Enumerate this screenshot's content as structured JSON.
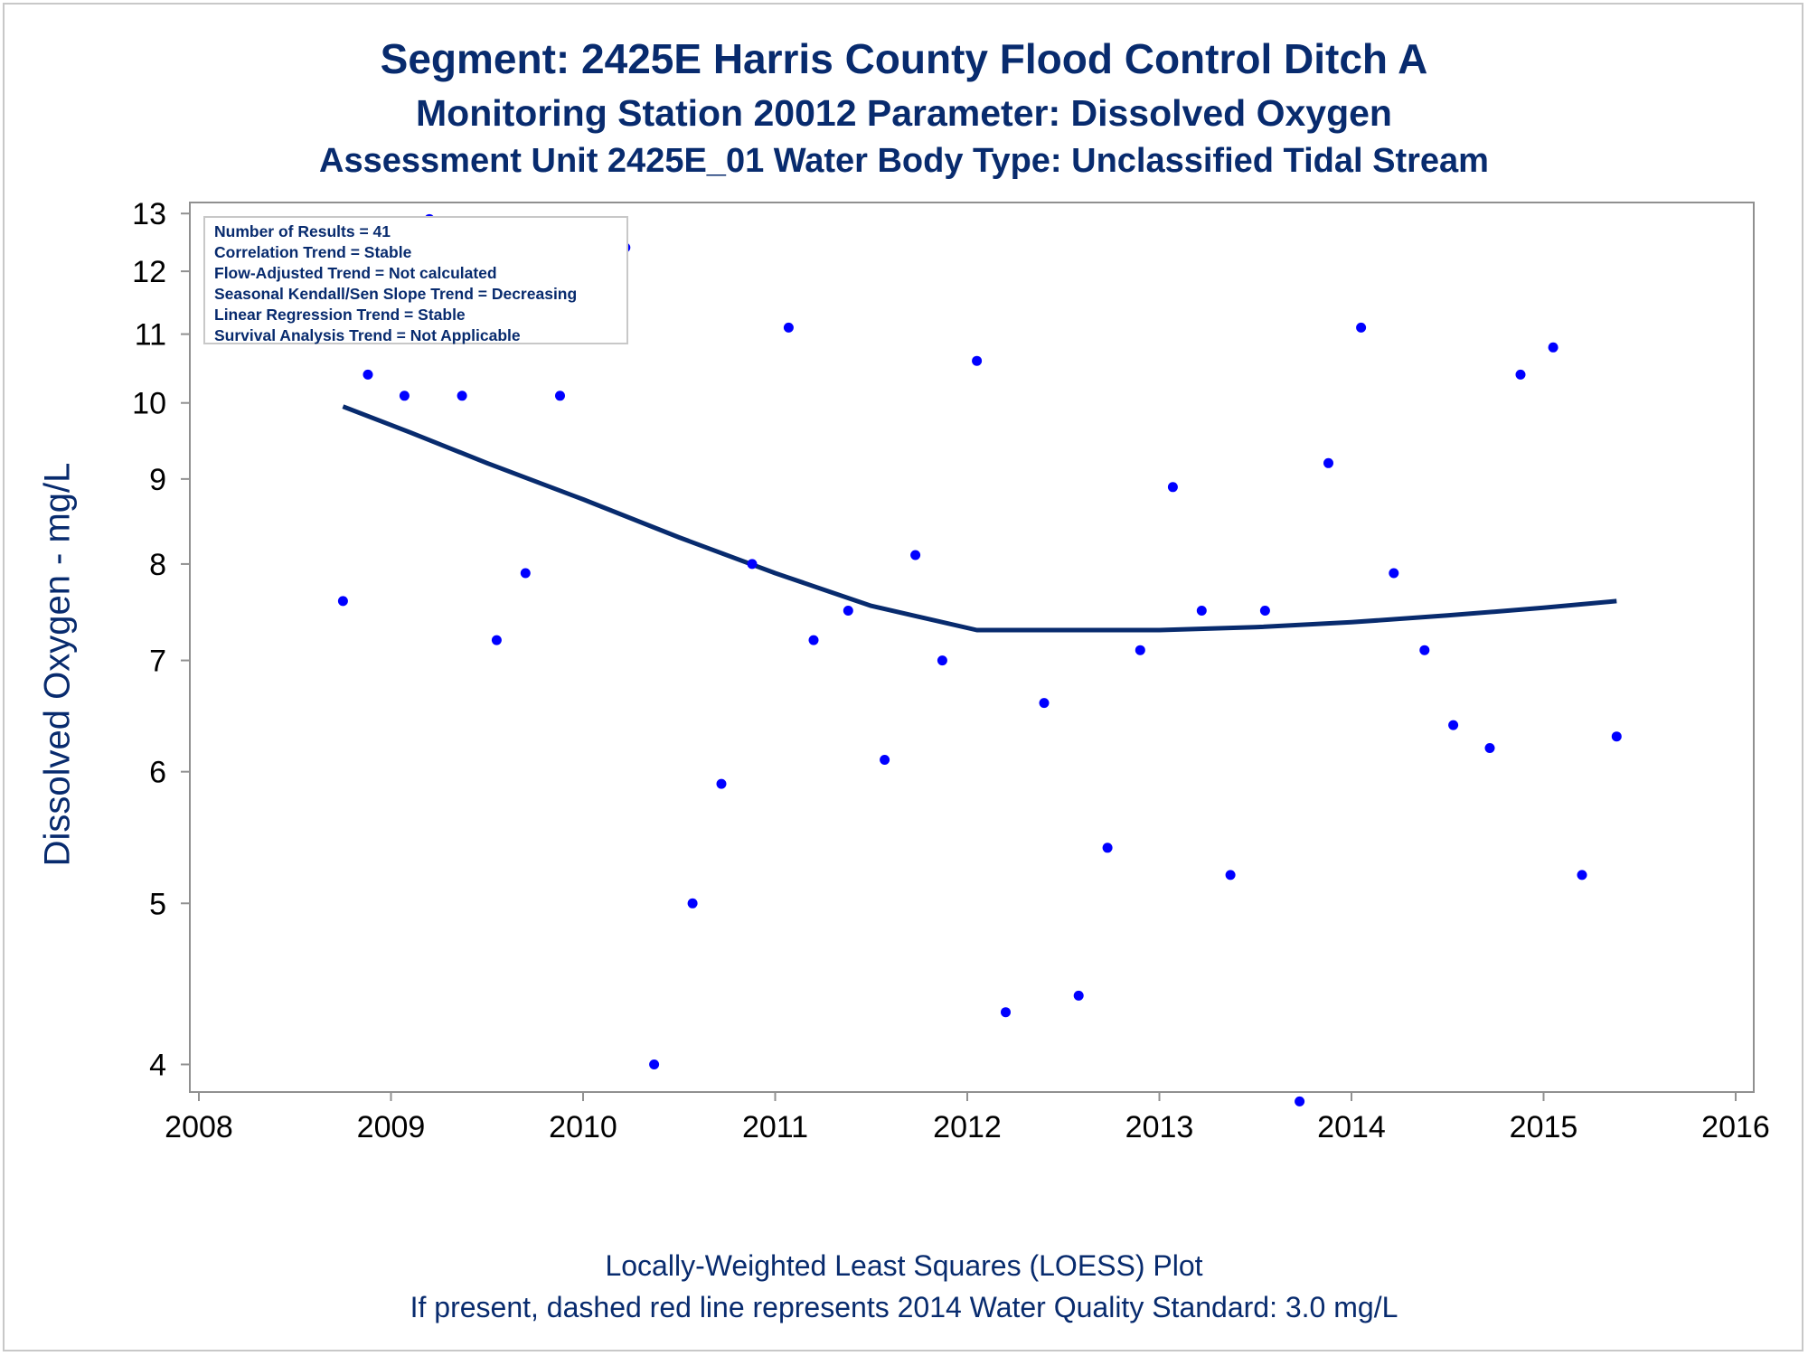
{
  "titles": {
    "line1": "Segment: 2425E  Harris County Flood Control Ditch A",
    "line2": "Monitoring Station 20012 Parameter: Dissolved Oxygen",
    "line3": "Assessment Unit 2425E_01   Water Body Type: Unclassified Tidal Stream"
  },
  "footnotes": {
    "line1": "Locally-Weighted Least Squares (LOESS) Plot",
    "line2": "If present, dashed red line represents 2014 Water Quality Standard: 3.0 mg/L"
  },
  "stats_box": {
    "lines": [
      "Number of Results = 41",
      "Correlation Trend = Stable",
      "Flow-Adjusted Trend = Not calculated",
      "Seasonal Kendall/Sen Slope Trend = Decreasing",
      "Linear Regression Trend = Stable",
      "Survival Analysis Trend = Not Applicable"
    ]
  },
  "colors": {
    "title_text": "#082b6e",
    "points": "#0000ff",
    "loess_line": "#082b6e",
    "axis": "#909090"
  },
  "chart_data": {
    "type": "scatter",
    "title": "Segment: 2425E  Harris County Flood Control Ditch A",
    "xlabel": "",
    "ylabel": "Dissolved Oxygen - mg/L",
    "y_scale": "log",
    "xlim": [
      2008,
      2016
    ],
    "ylim": [
      3.85,
      13.2
    ],
    "x_ticks": [
      2008,
      2009,
      2010,
      2011,
      2012,
      2013,
      2014,
      2015,
      2016
    ],
    "y_ticks": [
      4,
      5,
      6,
      7,
      8,
      9,
      10,
      11,
      12,
      13
    ],
    "legend": "none",
    "grid": false,
    "series": [
      {
        "type": "scatter",
        "points": [
          {
            "x": 2008.75,
            "y": 7.6
          },
          {
            "x": 2008.88,
            "y": 10.4
          },
          {
            "x": 2009.07,
            "y": 10.1
          },
          {
            "x": 2009.2,
            "y": 12.9
          },
          {
            "x": 2009.37,
            "y": 10.1
          },
          {
            "x": 2009.55,
            "y": 7.2
          },
          {
            "x": 2009.7,
            "y": 7.9
          },
          {
            "x": 2009.88,
            "y": 10.1
          },
          {
            "x": 2010.05,
            "y": 12.5
          },
          {
            "x": 2010.22,
            "y": 12.4
          },
          {
            "x": 2010.37,
            "y": 4.0
          },
          {
            "x": 2010.57,
            "y": 5.0
          },
          {
            "x": 2010.72,
            "y": 5.9
          },
          {
            "x": 2010.88,
            "y": 8.0
          },
          {
            "x": 2011.07,
            "y": 11.1
          },
          {
            "x": 2011.2,
            "y": 7.2
          },
          {
            "x": 2011.38,
            "y": 7.5
          },
          {
            "x": 2011.57,
            "y": 6.1
          },
          {
            "x": 2011.73,
            "y": 8.1
          },
          {
            "x": 2011.87,
            "y": 7.0
          },
          {
            "x": 2012.05,
            "y": 10.6
          },
          {
            "x": 2012.2,
            "y": 4.3
          },
          {
            "x": 2012.4,
            "y": 6.6
          },
          {
            "x": 2012.58,
            "y": 4.4
          },
          {
            "x": 2012.73,
            "y": 5.4
          },
          {
            "x": 2012.9,
            "y": 7.1
          },
          {
            "x": 2013.07,
            "y": 8.9
          },
          {
            "x": 2013.22,
            "y": 7.5
          },
          {
            "x": 2013.37,
            "y": 5.2
          },
          {
            "x": 2013.55,
            "y": 7.5
          },
          {
            "x": 2013.73,
            "y": 3.8
          },
          {
            "x": 2013.88,
            "y": 9.2
          },
          {
            "x": 2014.05,
            "y": 11.1
          },
          {
            "x": 2014.22,
            "y": 7.9
          },
          {
            "x": 2014.38,
            "y": 7.1
          },
          {
            "x": 2014.53,
            "y": 6.4
          },
          {
            "x": 2014.72,
            "y": 6.2
          },
          {
            "x": 2014.88,
            "y": 10.4
          },
          {
            "x": 2015.05,
            "y": 10.8
          },
          {
            "x": 2015.2,
            "y": 5.2
          },
          {
            "x": 2015.38,
            "y": 6.3
          }
        ]
      },
      {
        "type": "line",
        "points": [
          {
            "x": 2008.75,
            "y": 9.95
          },
          {
            "x": 2009.1,
            "y": 9.6
          },
          {
            "x": 2009.5,
            "y": 9.2
          },
          {
            "x": 2010.0,
            "y": 8.75
          },
          {
            "x": 2010.5,
            "y": 8.3
          },
          {
            "x": 2011.0,
            "y": 7.9
          },
          {
            "x": 2011.5,
            "y": 7.55
          },
          {
            "x": 2012.05,
            "y": 7.3
          },
          {
            "x": 2012.3,
            "y": 7.3
          },
          {
            "x": 2012.6,
            "y": 7.3
          },
          {
            "x": 2013.0,
            "y": 7.3
          },
          {
            "x": 2013.5,
            "y": 7.33
          },
          {
            "x": 2014.0,
            "y": 7.38
          },
          {
            "x": 2014.5,
            "y": 7.45
          },
          {
            "x": 2015.0,
            "y": 7.53
          },
          {
            "x": 2015.38,
            "y": 7.6
          }
        ]
      }
    ]
  }
}
